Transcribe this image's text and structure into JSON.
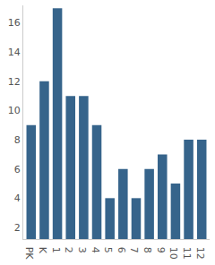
{
  "chart_data": {
    "type": "bar",
    "categories": [
      "PK",
      "K",
      "1",
      "2",
      "3",
      "4",
      "5",
      "6",
      "7",
      "8",
      "9",
      "10",
      "11",
      "12"
    ],
    "values": [
      9,
      12,
      17,
      11,
      11,
      9,
      4,
      6,
      4,
      6,
      7,
      5,
      8,
      8
    ],
    "color": "#36648b",
    "ylim": [
      1.2,
      17.2
    ],
    "yticks": [
      2,
      4,
      6,
      8,
      10,
      12,
      14,
      16
    ],
    "grid": false
  }
}
